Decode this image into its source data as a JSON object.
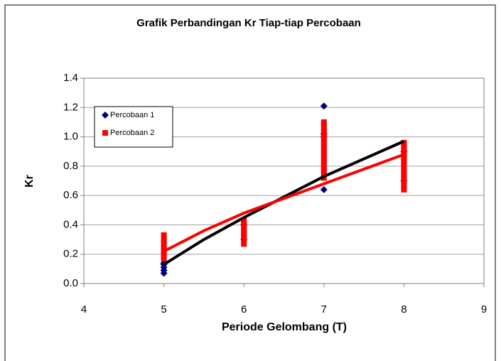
{
  "chart_data": {
    "type": "scatter",
    "title": "Grafik Perbandingan Kr Tiap-tiap Percobaan",
    "xlabel": "Periode Gelombang (T)",
    "ylabel": "Kr",
    "xlim": [
      4,
      9
    ],
    "xticks": [
      4,
      5,
      6,
      7,
      8,
      9
    ],
    "ylim": [
      0,
      1.4
    ],
    "yticks": [
      {
        "value": 0,
        "label": "0.0"
      },
      0.2,
      0.4,
      0.6,
      0.8,
      {
        "value": 1,
        "label": "1.0"
      },
      1.2,
      1.4
    ],
    "grid": true,
    "legend": "upper left",
    "series": [
      {
        "name": "Percobaan 1",
        "color": "#000080",
        "marker": "diamond",
        "x": [
          5,
          5,
          5,
          5,
          5,
          6,
          6,
          7,
          7,
          7,
          7,
          8,
          8
        ],
        "values": [
          0.07,
          0.09,
          0.11,
          0.13,
          0.14,
          0.3,
          0.4,
          1.21,
          1.02,
          1.0,
          0.64,
          0.7,
          0.9
        ]
      },
      {
        "name": "Percobaan 2",
        "color": "#ff0000",
        "marker": "square",
        "x": [
          5,
          5,
          5,
          5,
          5,
          5,
          5,
          5,
          5,
          6,
          6,
          6,
          6,
          6,
          6,
          6,
          6,
          6,
          7,
          7,
          7,
          7,
          7,
          7,
          7,
          7,
          7,
          7,
          7,
          7,
          7,
          7,
          7,
          7,
          7,
          7,
          7,
          7,
          8,
          8,
          8,
          8,
          8,
          8,
          8,
          8,
          8,
          8,
          8,
          8,
          8,
          8,
          8,
          8,
          8
        ],
        "values": [
          0.17,
          0.19,
          0.21,
          0.23,
          0.25,
          0.27,
          0.29,
          0.31,
          0.33,
          0.27,
          0.29,
          0.31,
          0.33,
          0.35,
          0.37,
          0.39,
          0.41,
          0.43,
          0.72,
          0.74,
          0.76,
          0.78,
          0.8,
          0.82,
          0.84,
          0.86,
          0.88,
          0.9,
          0.92,
          0.94,
          0.96,
          0.98,
          1.0,
          1.02,
          1.04,
          1.06,
          1.08,
          1.1,
          0.64,
          0.66,
          0.68,
          0.7,
          0.72,
          0.74,
          0.76,
          0.78,
          0.8,
          0.82,
          0.84,
          0.86,
          0.88,
          0.9,
          0.92,
          0.94,
          0.96
        ]
      }
    ],
    "trendlines": [
      {
        "color": "#000000",
        "x": [
          5,
          5.5,
          6,
          6.5,
          7,
          7.5,
          8
        ],
        "values": [
          0.13,
          0.3,
          0.45,
          0.59,
          0.73,
          0.85,
          0.97
        ]
      },
      {
        "color": "#ff0000",
        "x": [
          5,
          5.5,
          6,
          6.5,
          7,
          7.5,
          8
        ],
        "values": [
          0.22,
          0.36,
          0.48,
          0.58,
          0.68,
          0.78,
          0.88
        ]
      }
    ]
  }
}
